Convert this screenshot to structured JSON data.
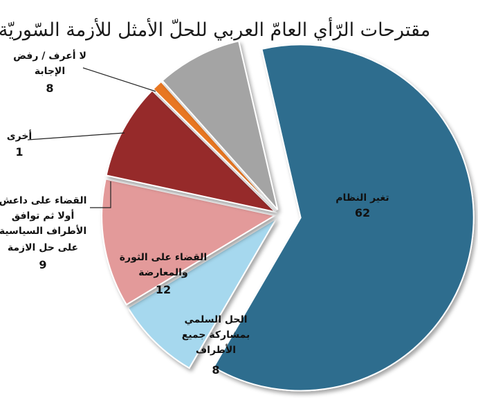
{
  "chart_data": {
    "type": "pie",
    "title": "مقترحات الرّأي العامّ العربي للحلّ الأمثل للأزمة السّوريّة",
    "slices": [
      {
        "label": "تغير النظام",
        "value": 62,
        "color": "#2e6d8e"
      },
      {
        "label": "الحل السلمي بمشاركة جميع الأطراف",
        "value": 8,
        "color": "#a6d8ee"
      },
      {
        "label": "القضاء على الثورة والمعارضة",
        "value": 12,
        "color": "#e39a9a"
      },
      {
        "label": "القضاء على داعش أولا ثم توافق الأطراف السياسية على حل الازمة",
        "value": 9,
        "color": "#962a2b"
      },
      {
        "label": "أخرى",
        "value": 1,
        "color": "#e87722"
      },
      {
        "label": "لا أعرف / رفض الإجابة",
        "value": 8,
        "color": "#a4a4a4"
      }
    ]
  }
}
